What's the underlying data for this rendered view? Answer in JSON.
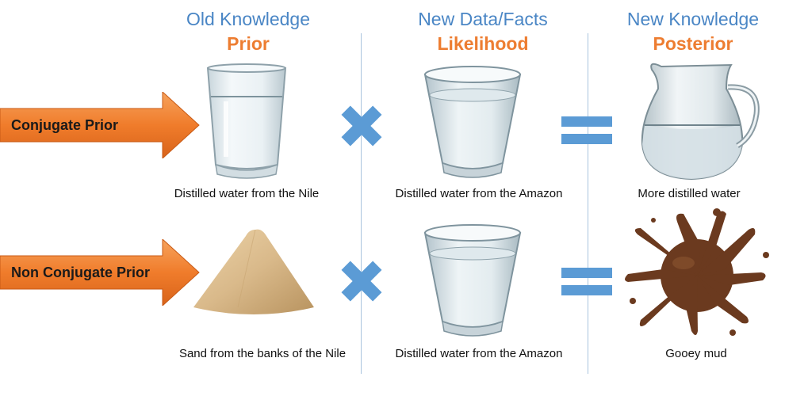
{
  "columns": [
    {
      "title": "Old Knowledge",
      "subtitle": "Prior"
    },
    {
      "title": "New Data/Facts",
      "subtitle": "Likelihood"
    },
    {
      "title": "New Knowledge",
      "subtitle": "Posterior"
    }
  ],
  "rows": [
    {
      "label": "Conjugate Prior",
      "prior_caption": "Distilled water from the Nile",
      "likelihood_caption": "Distilled water from the Amazon",
      "posterior_caption": "More distilled water"
    },
    {
      "label": "Non Conjugate Prior",
      "prior_caption": "Sand from the banks of the Nile",
      "likelihood_caption": "Distilled water from the Amazon",
      "posterior_caption": "Gooey mud"
    }
  ],
  "colors": {
    "heading_blue": "#4a86c5",
    "subtitle_orange": "#ed7d31",
    "arrow_orange": "#f07c2b",
    "operator_blue": "#5b9bd5",
    "divider": "#a9c4de",
    "mud_brown": "#6b3a1f",
    "sand": "#d9b98a"
  },
  "icons": [
    "multiply-icon",
    "equals-icon",
    "glass-icon",
    "pitcher-icon",
    "sand-pile-icon",
    "mud-splat-icon"
  ]
}
